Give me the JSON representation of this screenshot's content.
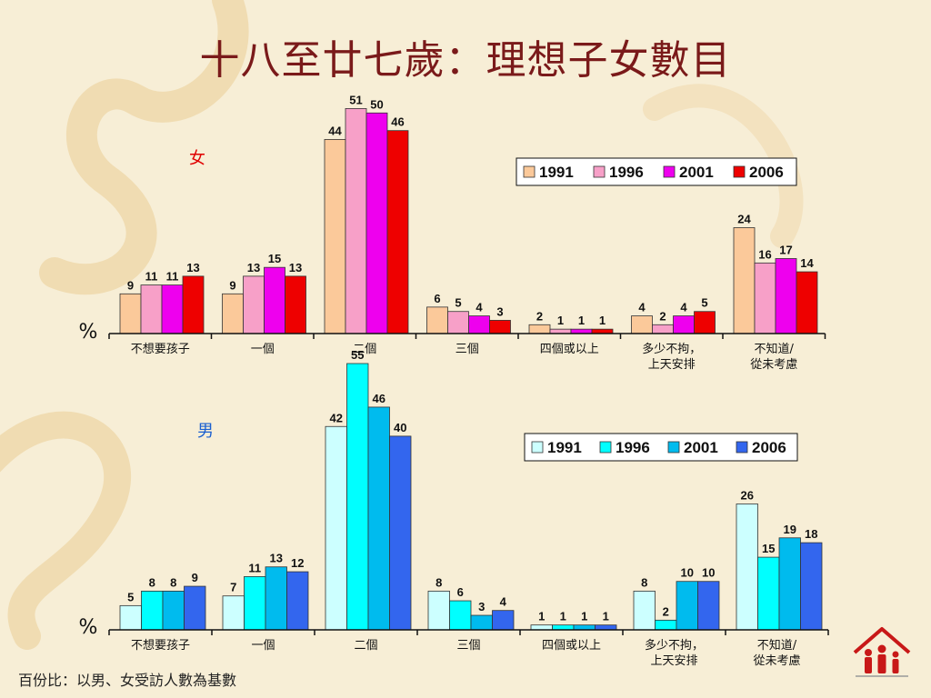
{
  "title": "十八至廿七歲：理想子女數目",
  "footnote": "百份比：以男、女受訪人數為基數",
  "chart_data": [
    {
      "type": "bar",
      "label": "女",
      "label_color": "#e00000",
      "unit_label": "%",
      "categories": [
        "不想要孩子",
        "一個",
        "二個",
        "三個",
        "四個或以上",
        "多少不拘，\n上天安排",
        "不知道/\n從未考慮"
      ],
      "series": [
        {
          "name": "1991",
          "color": "#fbc99a",
          "values": [
            9,
            9,
            44,
            6,
            2,
            4,
            24
          ]
        },
        {
          "name": "1996",
          "color": "#f7a0c8",
          "values": [
            11,
            13,
            51,
            5,
            1,
            2,
            16
          ]
        },
        {
          "name": "2001",
          "color": "#ee00ee",
          "values": [
            11,
            15,
            50,
            4,
            1,
            4,
            17
          ]
        },
        {
          "name": "2006",
          "color": "#ee0000",
          "values": [
            13,
            13,
            46,
            3,
            1,
            5,
            14
          ]
        }
      ],
      "ylim": [
        0,
        55
      ],
      "legend": "top-right"
    },
    {
      "type": "bar",
      "label": "男",
      "label_color": "#1a5fd0",
      "unit_label": "%",
      "categories": [
        "不想要孩子",
        "一個",
        "二個",
        "三個",
        "四個或以上",
        "多少不拘，\n上天安排",
        "不知道/\n從未考慮"
      ],
      "series": [
        {
          "name": "1991",
          "color": "#ccffff",
          "values": [
            5,
            7,
            42,
            8,
            1,
            8,
            26
          ]
        },
        {
          "name": "1996",
          "color": "#00ffff",
          "values": [
            8,
            11,
            55,
            6,
            1,
            2,
            15
          ]
        },
        {
          "name": "2001",
          "color": "#00bbee",
          "values": [
            8,
            13,
            46,
            3,
            1,
            10,
            19
          ]
        },
        {
          "name": "2006",
          "color": "#3366ee",
          "values": [
            9,
            12,
            40,
            4,
            1,
            10,
            18
          ]
        }
      ],
      "ylim": [
        0,
        55
      ],
      "legend": "top-right"
    }
  ]
}
